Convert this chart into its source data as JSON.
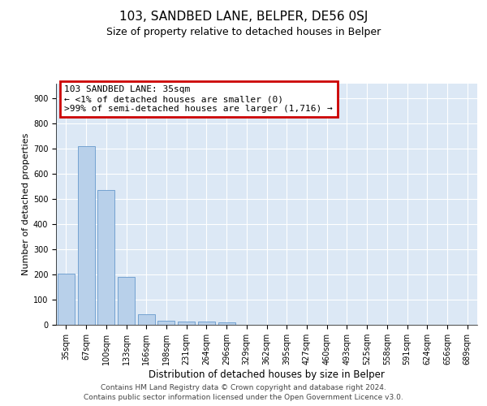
{
  "title": "103, SANDBED LANE, BELPER, DE56 0SJ",
  "subtitle": "Size of property relative to detached houses in Belper",
  "xlabel": "Distribution of detached houses by size in Belper",
  "ylabel": "Number of detached properties",
  "categories": [
    "35sqm",
    "67sqm",
    "100sqm",
    "133sqm",
    "166sqm",
    "198sqm",
    "231sqm",
    "264sqm",
    "296sqm",
    "329sqm",
    "362sqm",
    "395sqm",
    "427sqm",
    "460sqm",
    "493sqm",
    "525sqm",
    "558sqm",
    "591sqm",
    "624sqm",
    "656sqm",
    "689sqm"
  ],
  "values": [
    203,
    711,
    536,
    192,
    42,
    17,
    14,
    12,
    10,
    0,
    0,
    0,
    0,
    0,
    0,
    0,
    0,
    0,
    0,
    0,
    0
  ],
  "bar_color": "#b8d0ea",
  "bar_edge_color": "#6699cc",
  "annotation_line1": "103 SANDBED LANE: 35sqm",
  "annotation_line2": "← <1% of detached houses are smaller (0)",
  "annotation_line3": ">99% of semi-detached houses are larger (1,716) →",
  "annotation_box_edgecolor": "#cc0000",
  "ylim_max": 960,
  "yticks": [
    0,
    100,
    200,
    300,
    400,
    500,
    600,
    700,
    800,
    900
  ],
  "background_color": "#dce8f5",
  "grid_color": "#ffffff",
  "footer": "Contains HM Land Registry data © Crown copyright and database right 2024.\nContains public sector information licensed under the Open Government Licence v3.0.",
  "title_fontsize": 11,
  "subtitle_fontsize": 9,
  "ylabel_fontsize": 8,
  "xlabel_fontsize": 8.5,
  "annotation_fontsize": 8,
  "footer_fontsize": 6.5,
  "tick_fontsize": 7
}
